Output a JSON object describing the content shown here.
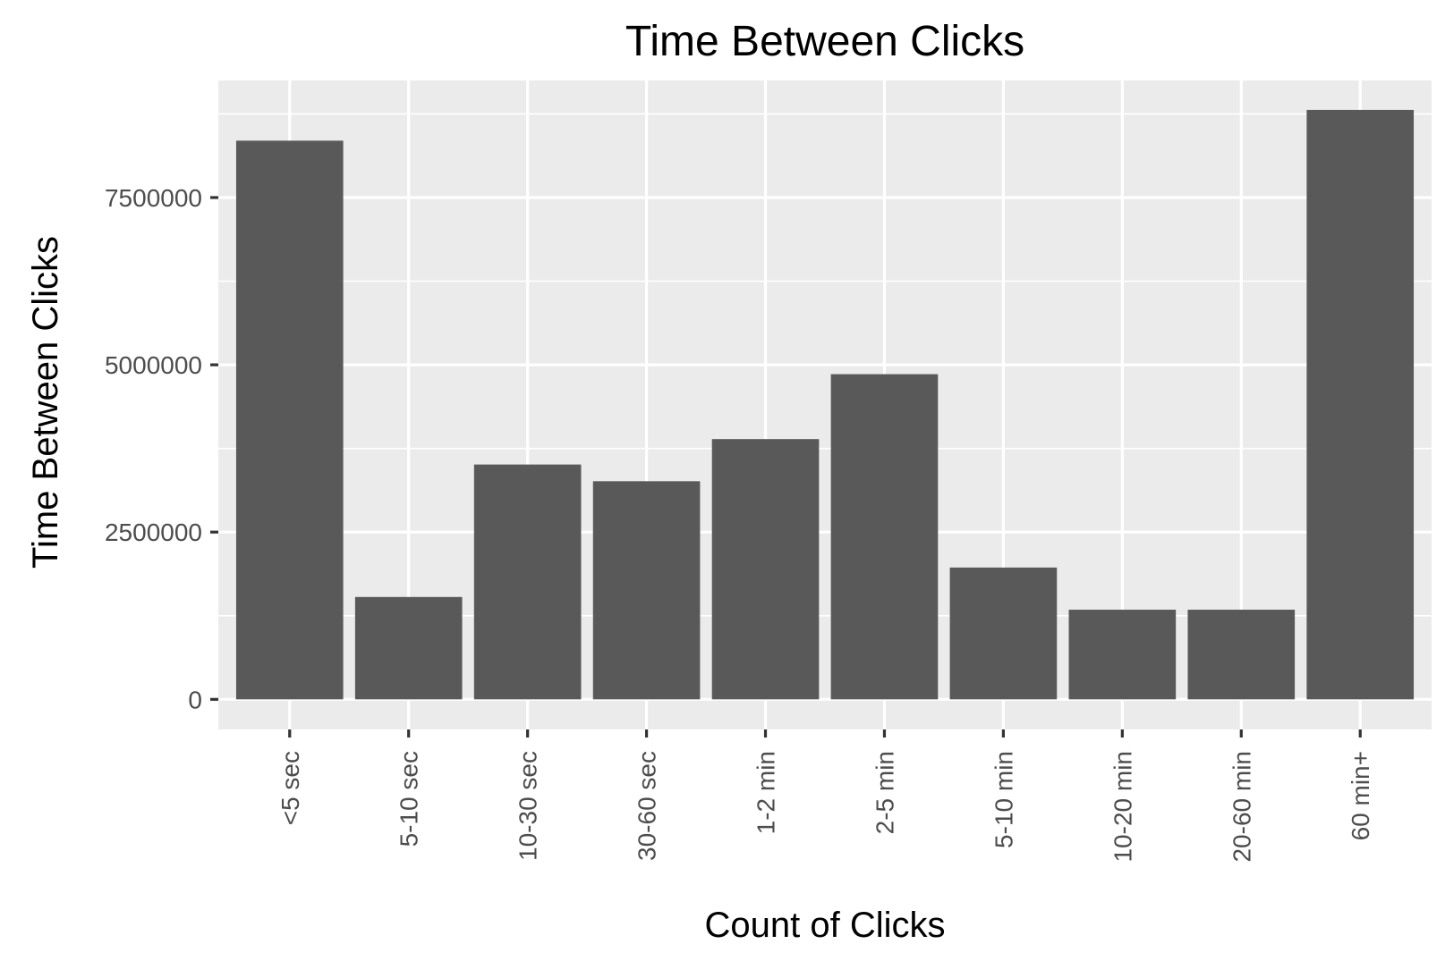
{
  "chart_data": {
    "type": "bar",
    "title": "Time Between Clicks",
    "xlabel": "Count of Clicks",
    "ylabel": "Time Between Clicks",
    "categories": [
      "<5 sec",
      "5-10 sec",
      "10-30 sec",
      "30-60 sec",
      "1-2 min",
      "2-5 min",
      "5-10 min",
      "10-20 min",
      "20-60 min",
      "60 min+"
    ],
    "values": [
      8350000,
      1530000,
      3510000,
      3260000,
      3890000,
      4860000,
      1970000,
      1340000,
      1340000,
      8810000
    ],
    "ylim": [
      -450000,
      9250000
    ],
    "yticks": [
      0,
      2500000,
      5000000,
      7500000
    ],
    "ytick_labels": [
      "0",
      "2500000",
      "5000000",
      "7500000"
    ],
    "grid": true,
    "legend": "none",
    "colors": {
      "bar": "#595959",
      "panel": "#ebebeb",
      "grid": "#ffffff"
    }
  }
}
